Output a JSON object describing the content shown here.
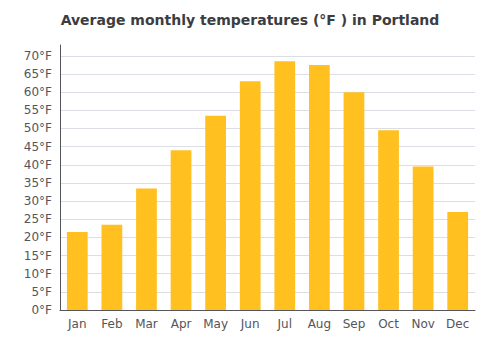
{
  "chart_data": {
    "type": "bar",
    "title": "Average monthly temperatures (°F ) in Portland",
    "categories": [
      "Jan",
      "Feb",
      "Mar",
      "Apr",
      "May",
      "Jun",
      "Jul",
      "Aug",
      "Sep",
      "Oct",
      "Nov",
      "Dec"
    ],
    "values": [
      21.5,
      23.5,
      33.5,
      44.0,
      53.5,
      63.0,
      68.5,
      67.5,
      60.0,
      49.5,
      39.5,
      27.0
    ],
    "color": "#FFC020",
    "ylim": [
      0,
      73
    ],
    "yticks": [
      {
        "value": 0,
        "label": "0°F"
      },
      {
        "value": 5,
        "label": "5°F"
      },
      {
        "value": 10,
        "label": "10°F"
      },
      {
        "value": 15,
        "label": "15°F"
      },
      {
        "value": 20,
        "label": "20°F"
      },
      {
        "value": 25,
        "label": "25°F"
      },
      {
        "value": 30,
        "label": "30°F"
      },
      {
        "value": 35,
        "label": "35°F"
      },
      {
        "value": 40,
        "label": "40°F"
      },
      {
        "value": 45,
        "label": "45°F"
      },
      {
        "value": 50,
        "label": "50°F"
      },
      {
        "value": 55,
        "label": "55°F"
      },
      {
        "value": 60,
        "label": "60°F"
      },
      {
        "value": 65,
        "label": "65°F"
      },
      {
        "value": 70,
        "label": "70°F"
      }
    ],
    "grid": true
  }
}
